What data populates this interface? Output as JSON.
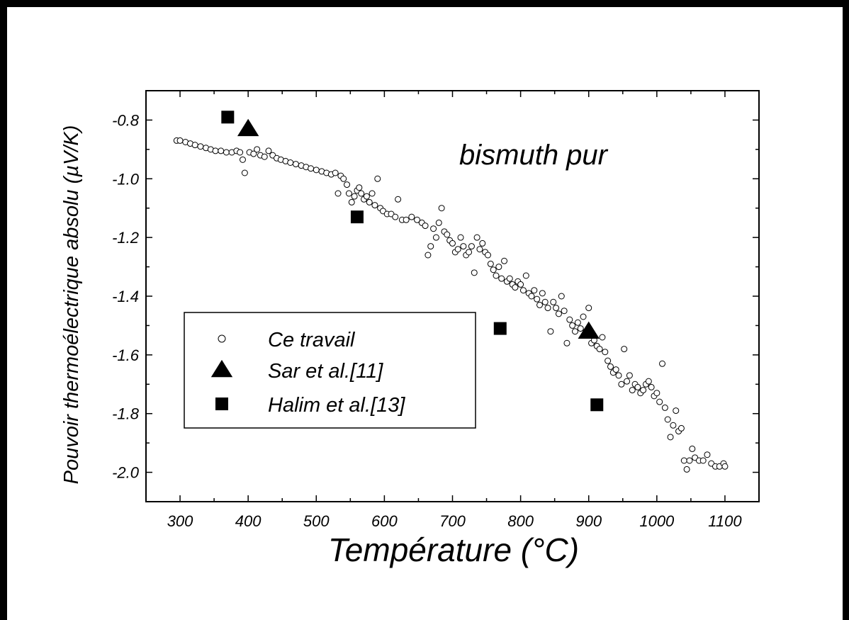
{
  "chart_data": {
    "type": "scatter",
    "title": "",
    "xlabel": "Température (°C)",
    "ylabel": "Pouvoir thermoélectrique absolu (µV/K)",
    "xlim": [
      250,
      1150
    ],
    "ylim": [
      -2.1,
      -0.7
    ],
    "x_ticks": [
      300,
      400,
      500,
      600,
      700,
      800,
      900,
      1000,
      1100
    ],
    "y_ticks": [
      -0.8,
      -1.0,
      -1.2,
      -1.4,
      -1.6,
      -1.8,
      -2.0
    ],
    "x_tick_labels": [
      "300",
      "400",
      "500",
      "600",
      "700",
      "800",
      "900",
      "1000",
      "1100"
    ],
    "y_tick_labels": [
      "-0.8",
      "-1.0",
      "-1.2",
      "-1.4",
      "-1.6",
      "-1.8",
      "-2.0"
    ],
    "grid": false,
    "legend_position": "lower-left",
    "annotation": "bismuth pur",
    "series": [
      {
        "name": "Ce travail",
        "marker": "open-circle",
        "color": "#000000",
        "points": [
          [
            295,
            -0.87
          ],
          [
            300,
            -0.87
          ],
          [
            308,
            -0.875
          ],
          [
            315,
            -0.88
          ],
          [
            322,
            -0.885
          ],
          [
            330,
            -0.89
          ],
          [
            338,
            -0.895
          ],
          [
            345,
            -0.9
          ],
          [
            352,
            -0.905
          ],
          [
            360,
            -0.905
          ],
          [
            368,
            -0.91
          ],
          [
            376,
            -0.91
          ],
          [
            383,
            -0.905
          ],
          [
            388,
            -0.91
          ],
          [
            392,
            -0.935
          ],
          [
            395,
            -0.98
          ],
          [
            402,
            -0.91
          ],
          [
            408,
            -0.915
          ],
          [
            413,
            -0.9
          ],
          [
            418,
            -0.92
          ],
          [
            424,
            -0.925
          ],
          [
            430,
            -0.905
          ],
          [
            436,
            -0.92
          ],
          [
            442,
            -0.93
          ],
          [
            448,
            -0.935
          ],
          [
            455,
            -0.94
          ],
          [
            462,
            -0.945
          ],
          [
            470,
            -0.95
          ],
          [
            478,
            -0.955
          ],
          [
            485,
            -0.96
          ],
          [
            492,
            -0.965
          ],
          [
            500,
            -0.97
          ],
          [
            508,
            -0.975
          ],
          [
            515,
            -0.98
          ],
          [
            522,
            -0.985
          ],
          [
            528,
            -0.98
          ],
          [
            532,
            -1.05
          ],
          [
            536,
            -0.99
          ],
          [
            540,
            -1.0
          ],
          [
            545,
            -1.02
          ],
          [
            548,
            -1.05
          ],
          [
            552,
            -1.08
          ],
          [
            556,
            -1.06
          ],
          [
            560,
            -1.04
          ],
          [
            563,
            -1.03
          ],
          [
            566,
            -1.05
          ],
          [
            570,
            -1.07
          ],
          [
            574,
            -1.06
          ],
          [
            578,
            -1.08
          ],
          [
            582,
            -1.05
          ],
          [
            586,
            -1.09
          ],
          [
            590,
            -1.0
          ],
          [
            594,
            -1.1
          ],
          [
            598,
            -1.11
          ],
          [
            604,
            -1.12
          ],
          [
            610,
            -1.12
          ],
          [
            616,
            -1.13
          ],
          [
            620,
            -1.07
          ],
          [
            626,
            -1.14
          ],
          [
            632,
            -1.14
          ],
          [
            640,
            -1.13
          ],
          [
            648,
            -1.14
          ],
          [
            655,
            -1.15
          ],
          [
            660,
            -1.16
          ],
          [
            664,
            -1.26
          ],
          [
            668,
            -1.23
          ],
          [
            672,
            -1.17
          ],
          [
            676,
            -1.2
          ],
          [
            680,
            -1.15
          ],
          [
            684,
            -1.1
          ],
          [
            688,
            -1.18
          ],
          [
            692,
            -1.19
          ],
          [
            696,
            -1.21
          ],
          [
            700,
            -1.22
          ],
          [
            704,
            -1.25
          ],
          [
            708,
            -1.24
          ],
          [
            712,
            -1.2
          ],
          [
            716,
            -1.23
          ],
          [
            720,
            -1.26
          ],
          [
            724,
            -1.25
          ],
          [
            728,
            -1.23
          ],
          [
            732,
            -1.32
          ],
          [
            736,
            -1.2
          ],
          [
            740,
            -1.24
          ],
          [
            744,
            -1.22
          ],
          [
            748,
            -1.25
          ],
          [
            752,
            -1.26
          ],
          [
            756,
            -1.29
          ],
          [
            760,
            -1.31
          ],
          [
            764,
            -1.33
          ],
          [
            768,
            -1.3
          ],
          [
            772,
            -1.34
          ],
          [
            776,
            -1.28
          ],
          [
            780,
            -1.35
          ],
          [
            784,
            -1.34
          ],
          [
            788,
            -1.36
          ],
          [
            792,
            -1.37
          ],
          [
            796,
            -1.35
          ],
          [
            800,
            -1.36
          ],
          [
            804,
            -1.38
          ],
          [
            808,
            -1.33
          ],
          [
            812,
            -1.39
          ],
          [
            816,
            -1.4
          ],
          [
            820,
            -1.38
          ],
          [
            824,
            -1.41
          ],
          [
            828,
            -1.43
          ],
          [
            832,
            -1.39
          ],
          [
            836,
            -1.42
          ],
          [
            840,
            -1.44
          ],
          [
            844,
            -1.52
          ],
          [
            848,
            -1.42
          ],
          [
            852,
            -1.44
          ],
          [
            856,
            -1.46
          ],
          [
            860,
            -1.4
          ],
          [
            864,
            -1.45
          ],
          [
            868,
            -1.56
          ],
          [
            872,
            -1.48
          ],
          [
            876,
            -1.5
          ],
          [
            880,
            -1.52
          ],
          [
            884,
            -1.49
          ],
          [
            888,
            -1.51
          ],
          [
            892,
            -1.47
          ],
          [
            896,
            -1.52
          ],
          [
            900,
            -1.44
          ],
          [
            904,
            -1.56
          ],
          [
            908,
            -1.55
          ],
          [
            912,
            -1.57
          ],
          [
            916,
            -1.58
          ],
          [
            920,
            -1.54
          ],
          [
            924,
            -1.59
          ],
          [
            928,
            -1.62
          ],
          [
            932,
            -1.64
          ],
          [
            936,
            -1.66
          ],
          [
            940,
            -1.65
          ],
          [
            944,
            -1.67
          ],
          [
            948,
            -1.7
          ],
          [
            952,
            -1.58
          ],
          [
            956,
            -1.69
          ],
          [
            960,
            -1.67
          ],
          [
            964,
            -1.72
          ],
          [
            968,
            -1.7
          ],
          [
            972,
            -1.71
          ],
          [
            976,
            -1.73
          ],
          [
            980,
            -1.72
          ],
          [
            984,
            -1.7
          ],
          [
            988,
            -1.69
          ],
          [
            992,
            -1.71
          ],
          [
            996,
            -1.74
          ],
          [
            1000,
            -1.73
          ],
          [
            1004,
            -1.76
          ],
          [
            1008,
            -1.63
          ],
          [
            1012,
            -1.78
          ],
          [
            1016,
            -1.82
          ],
          [
            1020,
            -1.88
          ],
          [
            1024,
            -1.84
          ],
          [
            1028,
            -1.79
          ],
          [
            1032,
            -1.86
          ],
          [
            1036,
            -1.85
          ],
          [
            1040,
            -1.96
          ],
          [
            1044,
            -1.99
          ],
          [
            1048,
            -1.96
          ],
          [
            1052,
            -1.92
          ],
          [
            1056,
            -1.95
          ],
          [
            1062,
            -1.96
          ],
          [
            1068,
            -1.96
          ],
          [
            1074,
            -1.94
          ],
          [
            1080,
            -1.97
          ],
          [
            1086,
            -1.98
          ],
          [
            1092,
            -1.98
          ],
          [
            1098,
            -1.97
          ],
          [
            1100,
            -1.98
          ]
        ]
      },
      {
        "name": "Sar et al.[11]",
        "marker": "filled-triangle",
        "color": "#000000",
        "points": [
          [
            400,
            -0.83
          ],
          [
            900,
            -1.52
          ]
        ]
      },
      {
        "name": "Halim et al.[13]",
        "marker": "filled-square",
        "color": "#000000",
        "points": [
          [
            370,
            -0.79
          ],
          [
            560,
            -1.13
          ],
          [
            770,
            -1.51
          ],
          [
            912,
            -1.77
          ]
        ]
      }
    ]
  }
}
